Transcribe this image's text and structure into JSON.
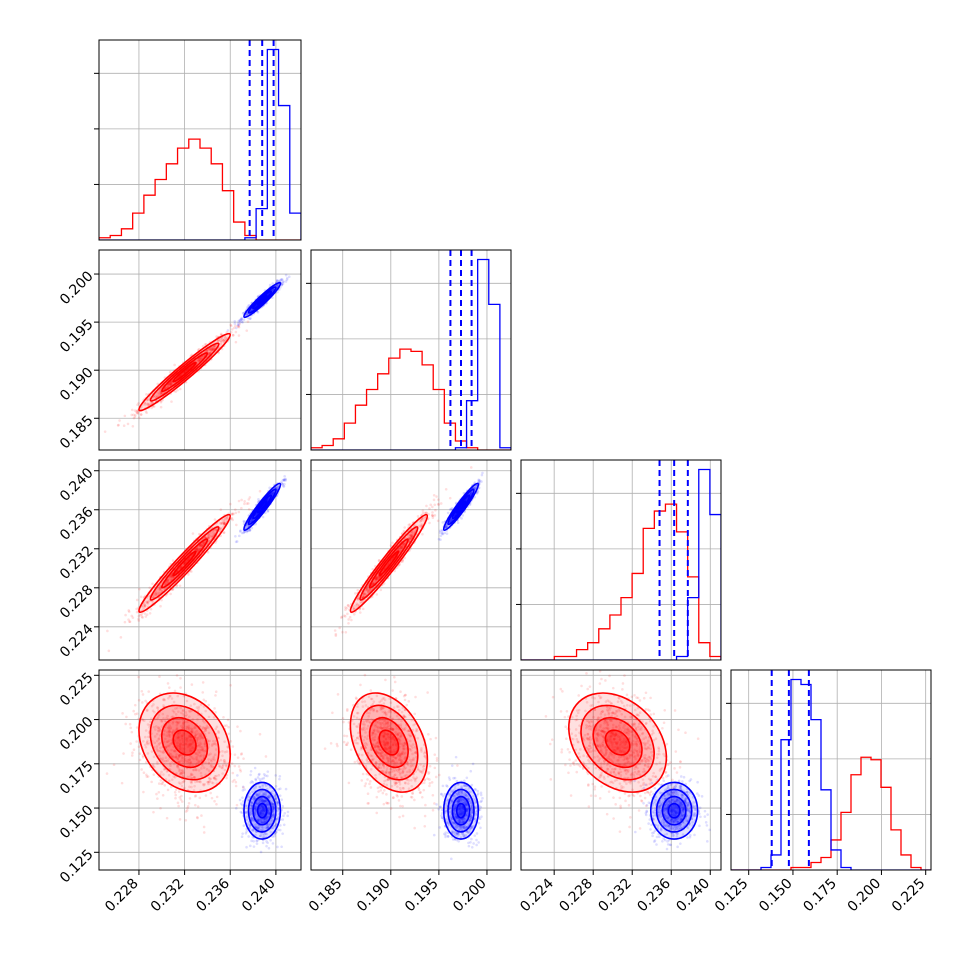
{
  "chart_data": {
    "type": "corner",
    "colors": {
      "red": "#ff0000",
      "blue": "#0000ff",
      "grid": "#b0b0b0"
    },
    "parameters": [
      {
        "range": [
          0.2245,
          0.2422
        ],
        "ticks": [
          "0.228",
          "0.232",
          "0.236",
          "0.240"
        ],
        "tick_values": [
          0.228,
          0.232,
          0.236,
          0.24
        ]
      },
      {
        "range": [
          0.1817,
          0.2025
        ],
        "ticks": [
          "0.185",
          "0.190",
          "0.195",
          "0.200"
        ],
        "tick_values": [
          0.185,
          0.19,
          0.195,
          0.2
        ]
      },
      {
        "range": [
          0.2206,
          0.2411
        ],
        "ticks": [
          "0.224",
          "0.228",
          "0.232",
          "0.236",
          "0.240"
        ],
        "tick_values": [
          0.224,
          0.228,
          0.232,
          0.236,
          0.24
        ]
      },
      {
        "range": [
          0.115,
          0.228
        ],
        "ticks": [
          "0.125",
          "0.150",
          "0.175",
          "0.200",
          "0.225"
        ],
        "tick_values": [
          0.125,
          0.15,
          0.175,
          0.2,
          0.225
        ]
      }
    ],
    "quantile_lines_blue": [
      [
        0.2377,
        0.2388,
        0.2398
      ],
      [
        0.1962,
        0.1973,
        0.1984
      ],
      [
        0.2348,
        0.2363,
        0.2377
      ],
      [
        0.138,
        0.1477,
        0.159
      ]
    ],
    "populations": {
      "red": {
        "means": [
          0.232,
          0.1898,
          0.2305,
          0.187
        ],
        "sds": [
          0.002,
          0.002,
          0.0025,
          0.014
        ],
        "hist_counts": [
          [
            1,
            2,
            5,
            12,
            20,
            27,
            34,
            41,
            45,
            41,
            34,
            22,
            8,
            2,
            0,
            0,
            0,
            0
          ],
          [
            1,
            2,
            5,
            12,
            20,
            27,
            34,
            41,
            45,
            44,
            38,
            27,
            12,
            4,
            1,
            0,
            0,
            0
          ],
          [
            0,
            0,
            0,
            1,
            1,
            3,
            5,
            9,
            13,
            18,
            25,
            38,
            43,
            45,
            37,
            24,
            5,
            1
          ],
          [
            0,
            0,
            0,
            0,
            0,
            0,
            1,
            1,
            3,
            5,
            12,
            23,
            38,
            45,
            44,
            33,
            16,
            6,
            1,
            0
          ]
        ]
      },
      "blue": {
        "means": [
          0.2388,
          0.1973,
          0.2363,
          0.1485
        ],
        "sds": [
          0.0008,
          0.0009,
          0.0012,
          0.008
        ],
        "hist_counts": [
          [
            0,
            0,
            0,
            0,
            0,
            0,
            0,
            0,
            0,
            0,
            0,
            0,
            0,
            1,
            14,
            85,
            60,
            12
          ],
          [
            0,
            0,
            0,
            0,
            0,
            0,
            0,
            0,
            0,
            0,
            0,
            0,
            0,
            1,
            22,
            85,
            65,
            1
          ],
          [
            0,
            0,
            0,
            0,
            0,
            0,
            0,
            0,
            0,
            0,
            0,
            0,
            0,
            0,
            1,
            18,
            55,
            42
          ],
          [
            0,
            0,
            0,
            1,
            6,
            52,
            76,
            74,
            60,
            32,
            8,
            1,
            0,
            0,
            0,
            0,
            0,
            0,
            0,
            0
          ]
        ]
      }
    }
  }
}
